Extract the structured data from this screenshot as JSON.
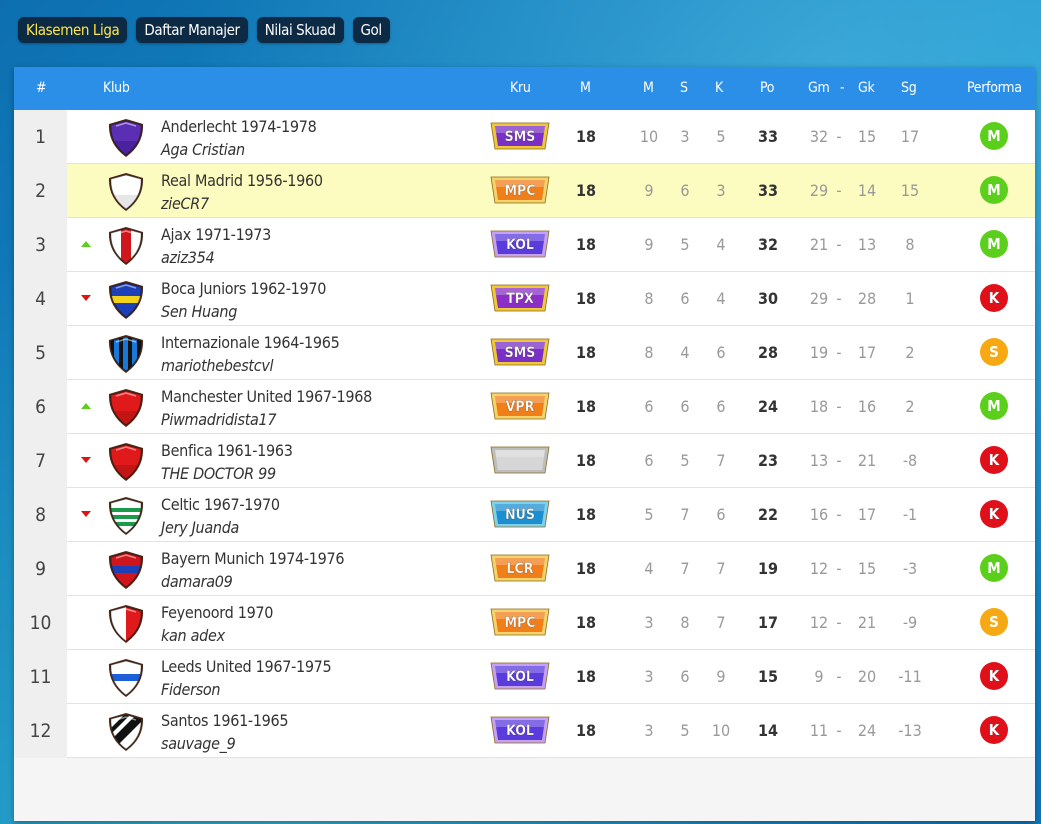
{
  "tabs": [
    {
      "label": "Klasemen Liga",
      "active": true
    },
    {
      "label": "Daftar Manajer",
      "active": false
    },
    {
      "label": "Nilai Skuad",
      "active": false
    },
    {
      "label": "Gol",
      "active": false
    }
  ],
  "headers": {
    "rank": "#",
    "club": "Klub",
    "crew": "Kru",
    "played": "M",
    "won": "M",
    "draw": "S",
    "lost": "K",
    "points": "Po",
    "gf": "Gm",
    "sep": "-",
    "ga": "Gk",
    "gd": "Sg",
    "form": "Performa"
  },
  "colors": {
    "header": "#2b8fe8",
    "highlight": "#fdfcc0",
    "perf_M": "#5ccf1c",
    "perf_K": "#e0101a",
    "perf_S": "#f6a912",
    "trend_up": "#5ccf1c",
    "trend_down": "#e01313"
  },
  "rows": [
    {
      "rank": "1",
      "trend": "none",
      "club": "Anderlecht 1974-1978",
      "manager": "Aga Cristian",
      "crest": "purple-crest-icon",
      "crestColors": [
        "#5a2fb3",
        "#3b168a"
      ],
      "crew": "SMS",
      "crewColor": "#7a2fc6",
      "crewRim": "#f0c63a",
      "played": "18",
      "w": "10",
      "d": "3",
      "l": "5",
      "pts": "33",
      "gf": "32",
      "sep": "-",
      "ga": "15",
      "gd": "17",
      "form": "M",
      "highlight": false
    },
    {
      "rank": "2",
      "trend": "none",
      "club": "Real Madrid 1956-1960",
      "manager": "zieCR7",
      "crest": "white-crest-icon",
      "crestColors": [
        "#ffffff",
        "#d0d0d0"
      ],
      "crew": "MPC",
      "crewColor": "#f07f1a",
      "crewRim": "#f5d36b",
      "played": "18",
      "w": "9",
      "d": "6",
      "l": "3",
      "pts": "33",
      "gf": "29",
      "sep": "-",
      "ga": "14",
      "gd": "15",
      "form": "M",
      "highlight": true
    },
    {
      "rank": "3",
      "trend": "up",
      "club": "Ajax 1971-1973",
      "manager": "aziz354",
      "crest": "red-white-stripe-crest-icon",
      "crestColors": [
        "#ffffff",
        "#d0161d"
      ],
      "crew": "KOL",
      "crewColor": "#5a3bdc",
      "crewRim": "#c5a1f0",
      "played": "18",
      "w": "9",
      "d": "5",
      "l": "4",
      "pts": "32",
      "gf": "21",
      "sep": "-",
      "ga": "13",
      "gd": "8",
      "form": "M",
      "highlight": false
    },
    {
      "rank": "4",
      "trend": "down",
      "club": "Boca Juniors 1962-1970",
      "manager": "Sen Huang",
      "crest": "blue-yellow-crest-icon",
      "crestColors": [
        "#1d3fb8",
        "#f5d21a"
      ],
      "crew": "TPX",
      "crewColor": "#8b2fc6",
      "crewRim": "#f0c63a",
      "played": "18",
      "w": "8",
      "d": "6",
      "l": "4",
      "pts": "30",
      "gf": "29",
      "sep": "-",
      "ga": "28",
      "gd": "1",
      "form": "K",
      "highlight": false
    },
    {
      "rank": "5",
      "trend": "none",
      "club": "Internazionale 1964-1965",
      "manager": "mariothebestcvl",
      "crest": "blue-black-stripes-crest-icon",
      "crestColors": [
        "#1a78d8",
        "#111111"
      ],
      "crew": "SMS",
      "crewColor": "#7a2fc6",
      "crewRim": "#f0c63a",
      "played": "18",
      "w": "8",
      "d": "4",
      "l": "6",
      "pts": "28",
      "gf": "19",
      "sep": "-",
      "ga": "17",
      "gd": "2",
      "form": "S",
      "highlight": false
    },
    {
      "rank": "6",
      "trend": "up",
      "club": "Manchester United 1967-1968",
      "manager": "Piwmadridista17",
      "crest": "red-crest-icon",
      "crestColors": [
        "#e01a1a",
        "#a80f0f"
      ],
      "crew": "VPR",
      "crewColor": "#f07f1a",
      "crewRim": "#f5d36b",
      "played": "18",
      "w": "6",
      "d": "6",
      "l": "6",
      "pts": "24",
      "gf": "18",
      "sep": "-",
      "ga": "16",
      "gd": "2",
      "form": "M",
      "highlight": false
    },
    {
      "rank": "7",
      "trend": "down",
      "club": "Benfica 1961-1963",
      "manager": "THE DOCTOR 99",
      "crest": "red-crest-icon",
      "crestColors": [
        "#e01a1a",
        "#a80f0f"
      ],
      "crew": "",
      "crewColor": "#d6d6d6",
      "crewRim": "#bdbdbd",
      "played": "18",
      "w": "6",
      "d": "5",
      "l": "7",
      "pts": "23",
      "gf": "13",
      "sep": "-",
      "ga": "21",
      "gd": "-8",
      "form": "K",
      "highlight": false
    },
    {
      "rank": "8",
      "trend": "down",
      "club": "Celtic 1967-1970",
      "manager": "Jery Juanda",
      "crest": "green-hoops-crest-icon",
      "crestColors": [
        "#ffffff",
        "#1a9a4a"
      ],
      "crew": "NUS",
      "crewColor": "#1c8fd0",
      "crewRim": "#7fd0ea",
      "played": "18",
      "w": "5",
      "d": "7",
      "l": "6",
      "pts": "22",
      "gf": "16",
      "sep": "-",
      "ga": "17",
      "gd": "-1",
      "form": "K",
      "highlight": false
    },
    {
      "rank": "9",
      "trend": "none",
      "club": "Bayern Munich 1974-1976",
      "manager": "damara09",
      "crest": "red-blue-crest-icon",
      "crestColors": [
        "#d0161d",
        "#1d3fb8"
      ],
      "crew": "LCR",
      "crewColor": "#f07f1a",
      "crewRim": "#f5d36b",
      "played": "18",
      "w": "4",
      "d": "7",
      "l": "7",
      "pts": "19",
      "gf": "12",
      "sep": "-",
      "ga": "15",
      "gd": "-3",
      "form": "M",
      "highlight": false
    },
    {
      "rank": "10",
      "trend": "none",
      "club": "Feyenoord 1970",
      "manager": "kan adex",
      "crest": "red-white-half-crest-icon",
      "crestColors": [
        "#ffffff",
        "#e01a1a"
      ],
      "crew": "MPC",
      "crewColor": "#f07f1a",
      "crewRim": "#f5d36b",
      "played": "18",
      "w": "3",
      "d": "8",
      "l": "7",
      "pts": "17",
      "gf": "12",
      "sep": "-",
      "ga": "21",
      "gd": "-9",
      "form": "S",
      "highlight": false
    },
    {
      "rank": "11",
      "trend": "none",
      "club": "Leeds United 1967-1975",
      "manager": "Fiderson",
      "crest": "white-blue-yellow-crest-icon",
      "crestColors": [
        "#ffffff",
        "#1d5fd8",
        "#f5d21a"
      ],
      "crew": "KOL",
      "crewColor": "#5a3bdc",
      "crewRim": "#c5a1f0",
      "played": "18",
      "w": "3",
      "d": "6",
      "l": "9",
      "pts": "15",
      "gf": "9",
      "sep": "-",
      "ga": "20",
      "gd": "-11",
      "form": "K",
      "highlight": false
    },
    {
      "rank": "12",
      "trend": "none",
      "club": "Santos 1961-1965",
      "manager": "sauvage_9",
      "crest": "black-white-diagonal-crest-icon",
      "crestColors": [
        "#ffffff",
        "#111111"
      ],
      "crew": "KOL",
      "crewColor": "#5a3bdc",
      "crewRim": "#c5a1f0",
      "played": "18",
      "w": "3",
      "d": "5",
      "l": "10",
      "pts": "14",
      "gf": "11",
      "sep": "-",
      "ga": "24",
      "gd": "-13",
      "form": "K",
      "highlight": false
    }
  ]
}
